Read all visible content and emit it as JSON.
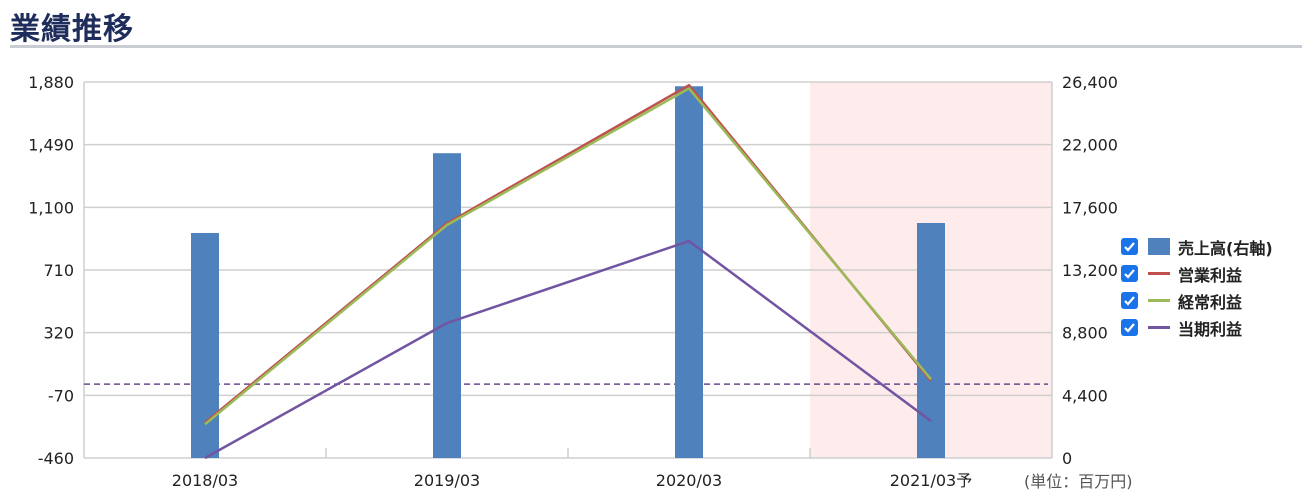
{
  "page": {
    "title": "業績推移",
    "unit": "(単位：百万円)"
  },
  "legend_state": [
    true,
    true,
    true,
    true
  ],
  "chart_data": {
    "type": "bar+line",
    "categories": [
      "2018/03",
      "2019/03",
      "2020/03",
      "2021/03予"
    ],
    "forecast_index": 3,
    "y_left": {
      "min": -460,
      "max": 1880,
      "ticks": [
        "1,880",
        "1,490",
        "1,100",
        "710",
        "320",
        "-70",
        "-460"
      ]
    },
    "y_right": {
      "min": 0,
      "max": 26400,
      "ticks": [
        "26,400",
        "22,000",
        "17,600",
        "13,200",
        "8,800",
        "4,400",
        "0"
      ]
    },
    "zero_line_left": 0,
    "series": [
      {
        "name": "売上高(右軸)",
        "type": "bar",
        "axis": "right",
        "color": "#4f81bd",
        "values": [
          15800,
          21400,
          26100,
          16500
        ]
      },
      {
        "name": "営業利益",
        "type": "line",
        "axis": "left",
        "color": "#c0504d",
        "values": [
          -240,
          1000,
          1860,
          20
        ]
      },
      {
        "name": "経常利益",
        "type": "line",
        "axis": "left",
        "color": "#9bbb59",
        "values": [
          -250,
          990,
          1840,
          30
        ]
      },
      {
        "name": "当期利益",
        "type": "line",
        "axis": "left",
        "color": "#7155a2",
        "values": [
          -460,
          380,
          890,
          -230
        ]
      }
    ],
    "forecast_shade_color": "#fdeceb",
    "grid": true
  }
}
